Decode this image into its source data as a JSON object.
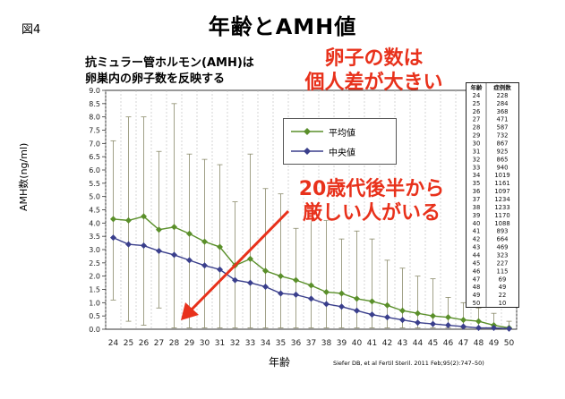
{
  "figure_label": "図4",
  "page_title": "年齢とAMH値",
  "chart_title": "抗ミュラー管ホルモン(AMH)は\n卵巣内の卵子数を反映する",
  "note_top": "卵子の数は\n個人差が大きい",
  "note_mid": "20歳代後半から\n厳しい人がいる",
  "citation": "Siefer DB, et al Fertil Steril. 2011 Feb;95(2):747–50)",
  "colors": {
    "mean": "#5a8f2a",
    "median": "#3a3f8c",
    "accent": "#e8311b",
    "arrow": "#e8311b"
  },
  "side_table": {
    "headers": [
      "年齢",
      "症例数"
    ],
    "rows": [
      [
        "24",
        "228"
      ],
      [
        "25",
        "284"
      ],
      [
        "26",
        "368"
      ],
      [
        "27",
        "471"
      ],
      [
        "28",
        "587"
      ],
      [
        "29",
        "732"
      ],
      [
        "30",
        "867"
      ],
      [
        "31",
        "925"
      ],
      [
        "32",
        "865"
      ],
      [
        "33",
        "940"
      ],
      [
        "34",
        "1019"
      ],
      [
        "35",
        "1161"
      ],
      [
        "36",
        "1097"
      ],
      [
        "37",
        "1234"
      ],
      [
        "38",
        "1233"
      ],
      [
        "39",
        "1170"
      ],
      [
        "40",
        "1088"
      ],
      [
        "41",
        "893"
      ],
      [
        "42",
        "664"
      ],
      [
        "43",
        "469"
      ],
      [
        "44",
        "323"
      ],
      [
        "45",
        "227"
      ],
      [
        "46",
        "115"
      ],
      [
        "47",
        "69"
      ],
      [
        "48",
        "49"
      ],
      [
        "49",
        "22"
      ],
      [
        "50",
        "10"
      ]
    ]
  },
  "chart_data": {
    "type": "line",
    "title": "抗ミュラー管ホルモン(AMH)は 卵巣内の卵子数を反映する",
    "xlabel": "年齢",
    "ylabel": "AMH数(ng/ml)",
    "x": [
      24,
      25,
      26,
      27,
      28,
      29,
      30,
      31,
      32,
      33,
      34,
      35,
      36,
      37,
      38,
      39,
      40,
      41,
      42,
      43,
      44,
      45,
      46,
      47,
      48,
      49,
      50
    ],
    "ylim": [
      0,
      9
    ],
    "yticks": [
      "0.0",
      "0.5",
      "1.0",
      "1.5",
      "2.0",
      "2.5",
      "3.0",
      "3.5",
      "4.0",
      "4.5",
      "5.0",
      "5.5",
      "6.0",
      "6.5",
      "7.0",
      "7.5",
      "8.0",
      "8.5",
      "9.0"
    ],
    "grid": "vertical dashed",
    "legend_position": "upper-right",
    "series": [
      {
        "name": "平均値",
        "marker": "diamond",
        "color": "#5a8f2a",
        "values": [
          4.15,
          4.1,
          4.25,
          3.75,
          3.85,
          3.6,
          3.3,
          3.1,
          2.4,
          2.65,
          2.2,
          2.0,
          1.85,
          1.65,
          1.4,
          1.35,
          1.15,
          1.05,
          0.9,
          0.7,
          0.6,
          0.5,
          0.45,
          0.35,
          0.3,
          0.15,
          0.05
        ]
      },
      {
        "name": "中央値",
        "marker": "diamond",
        "color": "#3a3f8c",
        "values": [
          3.45,
          3.2,
          3.15,
          2.95,
          2.8,
          2.6,
          2.4,
          2.25,
          1.85,
          1.75,
          1.6,
          1.35,
          1.3,
          1.15,
          0.95,
          0.85,
          0.7,
          0.55,
          0.45,
          0.35,
          0.25,
          0.2,
          0.15,
          0.1,
          0.05,
          0.05,
          0.02
        ]
      }
    ],
    "error_bars": {
      "low": [
        1.1,
        0.3,
        0.15,
        0.8,
        0.05,
        0.05,
        0.05,
        0.05,
        0.05,
        0.05,
        0.05,
        0.05,
        0.05,
        0.05,
        0.05,
        0.05,
        0.05,
        0.05,
        0.05,
        0.05,
        0.05,
        0.05,
        0.05,
        0.05,
        0.05,
        0.05,
        0.0
      ],
      "high": [
        7.1,
        8.0,
        8.0,
        6.7,
        8.5,
        6.6,
        6.4,
        6.2,
        4.8,
        6.6,
        5.3,
        5.1,
        3.8,
        4.4,
        4.1,
        3.4,
        3.7,
        3.4,
        2.6,
        2.3,
        2.0,
        1.9,
        1.2,
        1.0,
        0.8,
        0.6,
        0.3
      ]
    }
  }
}
